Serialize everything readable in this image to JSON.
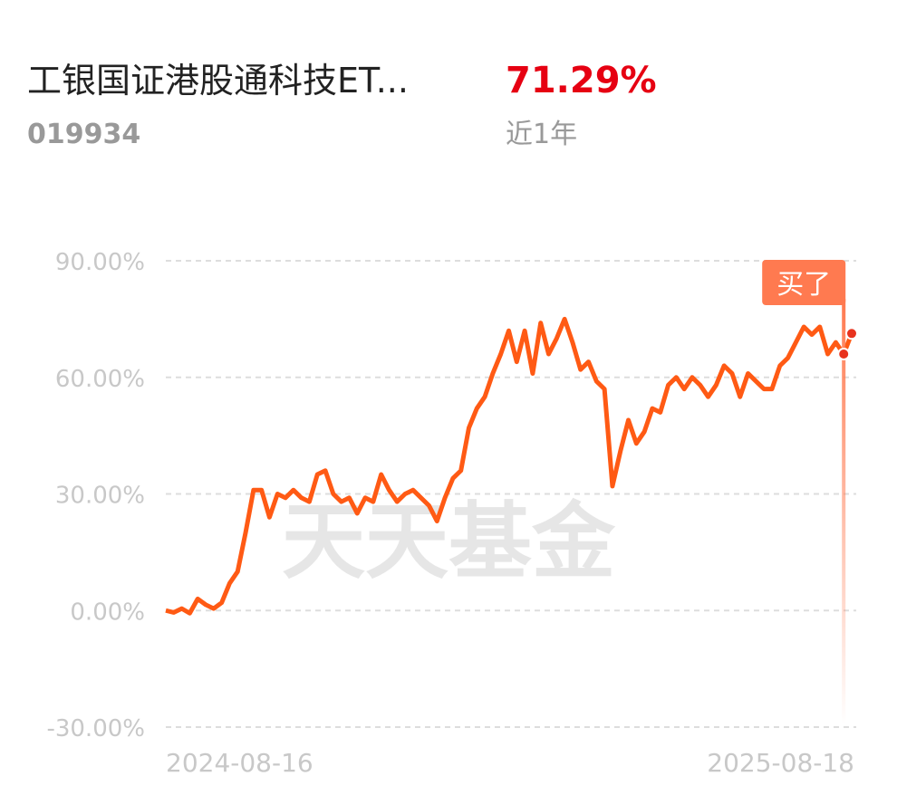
{
  "header": {
    "title": "工银国证港股通科技ET...",
    "code": "019934",
    "return": "71.29%",
    "period": "近1年"
  },
  "chart_data": {
    "type": "line",
    "watermark": "天天基金",
    "marker_label": "买了",
    "marker_index": 85,
    "categories": [
      "2024-08-16",
      null,
      null,
      null,
      null,
      null,
      null,
      null,
      null,
      null,
      null,
      null,
      null,
      null,
      null,
      null,
      null,
      null,
      null,
      null,
      null,
      null,
      null,
      null,
      null,
      null,
      null,
      null,
      null,
      null,
      null,
      null,
      null,
      null,
      null,
      null,
      null,
      null,
      null,
      null,
      null,
      null,
      null,
      null,
      null,
      null,
      null,
      null,
      null,
      null,
      null,
      null,
      null,
      null,
      null,
      null,
      null,
      null,
      null,
      null,
      null,
      null,
      null,
      null,
      null,
      null,
      null,
      null,
      null,
      null,
      null,
      null,
      null,
      null,
      null,
      null,
      null,
      null,
      null,
      null,
      null,
      null,
      null,
      null,
      null,
      null,
      "2025-08-18"
    ],
    "series": [
      {
        "name": "工银国证港股通科技ETF联接",
        "color": "#ff5a14",
        "values": [
          0,
          -0.5,
          0.5,
          -0.7,
          3,
          1.5,
          0.5,
          2,
          7,
          10,
          20,
          31,
          31,
          24,
          30,
          29,
          31,
          29,
          28,
          35,
          36,
          30,
          28,
          29,
          25,
          29,
          28,
          35,
          31,
          28,
          30,
          31,
          29,
          27,
          23,
          29,
          34,
          36,
          47,
          52,
          55,
          61,
          66,
          72,
          64,
          72,
          61,
          74,
          66,
          70,
          75,
          69,
          62,
          64,
          59,
          57,
          32,
          41,
          49,
          43,
          46,
          52,
          51,
          58,
          60,
          57,
          60,
          58,
          55,
          58,
          63,
          61,
          55,
          61,
          59,
          57,
          57,
          63,
          65,
          69,
          73,
          71,
          73,
          66,
          69,
          66,
          71.29
        ]
      }
    ],
    "ylim": [
      -30,
      90
    ],
    "yticks": [
      {
        "value": -30,
        "label": "-30.00%"
      },
      {
        "value": 0,
        "label": "0.00%"
      },
      {
        "value": 30,
        "label": "30.00%"
      },
      {
        "value": 60,
        "label": "60.00%"
      },
      {
        "value": 90,
        "label": "90.00%"
      }
    ],
    "grid": true
  }
}
